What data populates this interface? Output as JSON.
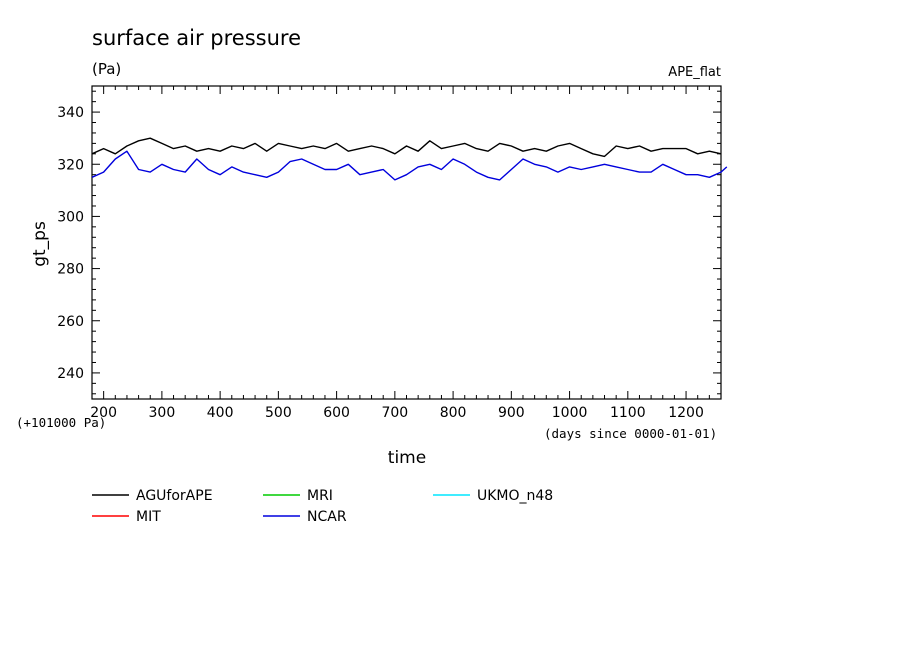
{
  "chart_data": {
    "type": "line",
    "title": "surface air pressure",
    "units": "(Pa)",
    "experiment": "APE_flat",
    "ylabel": "gt_ps",
    "xlabel": "time",
    "x_unit_note": "(days since 0000-01-01)",
    "y_offset_note": "(+101000 Pa)",
    "xlim": [
      180,
      1260
    ],
    "ylim": [
      230,
      350
    ],
    "x_ticks": [
      200,
      300,
      400,
      500,
      600,
      700,
      800,
      900,
      1000,
      1100,
      1200
    ],
    "y_ticks": [
      240,
      260,
      280,
      300,
      320,
      340
    ],
    "series": [
      {
        "name": "AGUforAPE",
        "color": "#000000",
        "x": [
          180,
          200,
          220,
          240,
          260,
          280,
          300,
          320,
          340,
          360,
          380,
          400,
          420,
          440,
          460,
          480,
          500,
          520,
          540,
          560,
          580,
          600,
          620,
          640,
          660,
          680,
          700,
          720,
          740,
          760,
          780,
          800,
          820,
          840,
          860,
          880,
          900,
          920,
          940,
          960,
          980,
          1000,
          1020,
          1040,
          1060,
          1080,
          1100,
          1120,
          1140,
          1160,
          1180,
          1200,
          1220,
          1240,
          1260
        ],
        "y": [
          324,
          326,
          324,
          327,
          329,
          330,
          328,
          326,
          327,
          325,
          326,
          325,
          327,
          326,
          328,
          325,
          328,
          327,
          326,
          327,
          326,
          328,
          325,
          326,
          327,
          326,
          324,
          327,
          325,
          329,
          326,
          327,
          328,
          326,
          325,
          328,
          327,
          325,
          326,
          325,
          327,
          328,
          326,
          324,
          323,
          327,
          326,
          327,
          325,
          326,
          326,
          326,
          324,
          325,
          324
        ]
      },
      {
        "name": "MIT",
        "color": "#ff0000",
        "x": [],
        "y": []
      },
      {
        "name": "MRI",
        "color": "#00cc00",
        "x": [],
        "y": []
      },
      {
        "name": "NCAR",
        "color": "#0000dd",
        "x": [
          180,
          200,
          220,
          240,
          260,
          280,
          300,
          320,
          340,
          360,
          380,
          400,
          420,
          440,
          460,
          480,
          500,
          520,
          540,
          560,
          580,
          600,
          620,
          640,
          660,
          680,
          700,
          720,
          740,
          760,
          780,
          800,
          820,
          840,
          860,
          880,
          900,
          920,
          940,
          960,
          980,
          1000,
          1020,
          1040,
          1060,
          1080,
          1100,
          1120,
          1140,
          1160,
          1180,
          1200,
          1220,
          1240,
          1260,
          1270
        ],
        "y": [
          315,
          317,
          322,
          325,
          318,
          317,
          320,
          318,
          317,
          322,
          318,
          316,
          319,
          317,
          316,
          315,
          317,
          321,
          322,
          320,
          318,
          318,
          320,
          316,
          317,
          318,
          314,
          316,
          319,
          320,
          318,
          322,
          320,
          317,
          315,
          314,
          318,
          322,
          320,
          319,
          317,
          319,
          318,
          319,
          320,
          319,
          318,
          317,
          317,
          320,
          318,
          316,
          316,
          315,
          317,
          319
        ]
      },
      {
        "name": "UKMO_n48",
        "color": "#00e5ff",
        "x": [],
        "y": []
      }
    ]
  }
}
